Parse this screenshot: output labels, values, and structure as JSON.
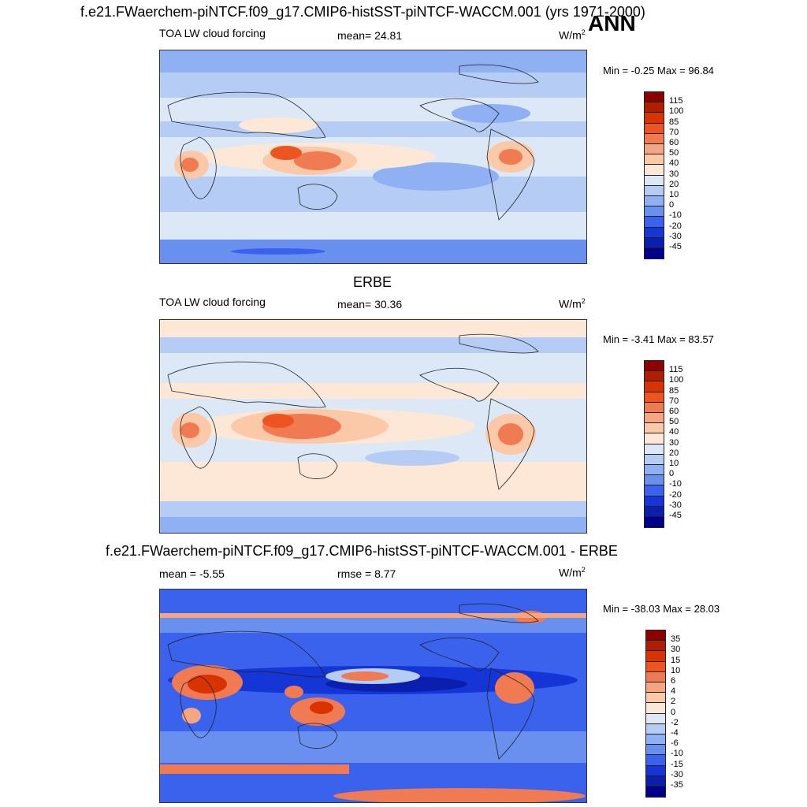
{
  "header": {
    "title": "f.e21.FWaerchem-piNTCF.f09_g17.CMIP6-histSST-piNTCF-WACCM.001 (yrs 1971-2000)",
    "season": "ANN"
  },
  "panels": [
    {
      "id": "model",
      "subtitle": "",
      "left_label": "TOA LW cloud forcing",
      "center_label": "mean=  24.81",
      "unit_base": "W/m",
      "unit_sup": "2",
      "minmax": "Min =  -0.25 Max =  96.84",
      "colorbar": {
        "labels": [
          "115",
          "100",
          "85",
          "70",
          "60",
          "50",
          "40",
          "30",
          "20",
          "10",
          "0",
          "-10",
          "-20",
          "-30",
          "-45"
        ],
        "colors": [
          "#8b0000",
          "#b01e00",
          "#d83300",
          "#ee5420",
          "#f07a52",
          "#f4a582",
          "#fbc8a8",
          "#fde8d8",
          "#dde8f7",
          "#b5cdf4",
          "#8fb0f2",
          "#6990ef",
          "#3a62ec",
          "#1535d6",
          "#0a1fae",
          "#00008a"
        ]
      }
    },
    {
      "id": "obs",
      "subtitle": "ERBE",
      "left_label": "TOA LW cloud forcing",
      "center_label": "mean=  30.36",
      "unit_base": "W/m",
      "unit_sup": "2",
      "minmax": "Min =  -3.41 Max =  83.57",
      "colorbar": {
        "labels": [
          "115",
          "100",
          "85",
          "70",
          "60",
          "50",
          "40",
          "30",
          "20",
          "10",
          "0",
          "-10",
          "-20",
          "-30",
          "-45"
        ],
        "colors": [
          "#8b0000",
          "#b01e00",
          "#d83300",
          "#ee5420",
          "#f07a52",
          "#f4a582",
          "#fbc8a8",
          "#fde8d8",
          "#dde8f7",
          "#b5cdf4",
          "#8fb0f2",
          "#6990ef",
          "#3a62ec",
          "#1535d6",
          "#0a1fae",
          "#00008a"
        ]
      }
    },
    {
      "id": "diff",
      "subtitle": "f.e21.FWaerchem-piNTCF.f09_g17.CMIP6-histSST-piNTCF-WACCM.001 - ERBE",
      "left_label": "mean =  -5.55",
      "center_label": "rmse =   8.77",
      "unit_base": "W/m",
      "unit_sup": "2",
      "minmax": "Min = -38.03 Max =  28.03",
      "colorbar": {
        "labels": [
          "35",
          "30",
          "15",
          "10",
          "6",
          "4",
          "2",
          "0",
          "-2",
          "-4",
          "-6",
          "-10",
          "-15",
          "-30",
          "-35"
        ],
        "colors": [
          "#8b0000",
          "#b01e00",
          "#d83300",
          "#ee5420",
          "#f07a52",
          "#f4a582",
          "#fbc8a8",
          "#fde8d8",
          "#dde8f7",
          "#b5cdf4",
          "#8fb0f2",
          "#6990ef",
          "#3a62ec",
          "#1535d6",
          "#0a1fae",
          "#00008a"
        ]
      }
    }
  ],
  "chart_data": [
    {
      "type": "heatmap",
      "title": "TOA LW cloud forcing",
      "mean": 24.81,
      "min": -0.25,
      "max": 96.84,
      "units": "W/m2",
      "levels": [
        -45,
        -30,
        -20,
        -10,
        0,
        10,
        20,
        30,
        40,
        50,
        60,
        70,
        85,
        100,
        115
      ]
    },
    {
      "type": "heatmap",
      "title": "TOA LW cloud forcing",
      "source": "ERBE",
      "mean": 30.36,
      "min": -3.41,
      "max": 83.57,
      "units": "W/m2",
      "levels": [
        -45,
        -30,
        -20,
        -10,
        0,
        10,
        20,
        30,
        40,
        50,
        60,
        70,
        85,
        100,
        115
      ]
    },
    {
      "type": "heatmap",
      "mean": -5.55,
      "rmse": 8.77,
      "min": -38.03,
      "max": 28.03,
      "units": "W/m2",
      "levels": [
        -35,
        -30,
        -15,
        -10,
        -6,
        -4,
        -2,
        0,
        2,
        4,
        6,
        10,
        15,
        30,
        35
      ]
    }
  ]
}
